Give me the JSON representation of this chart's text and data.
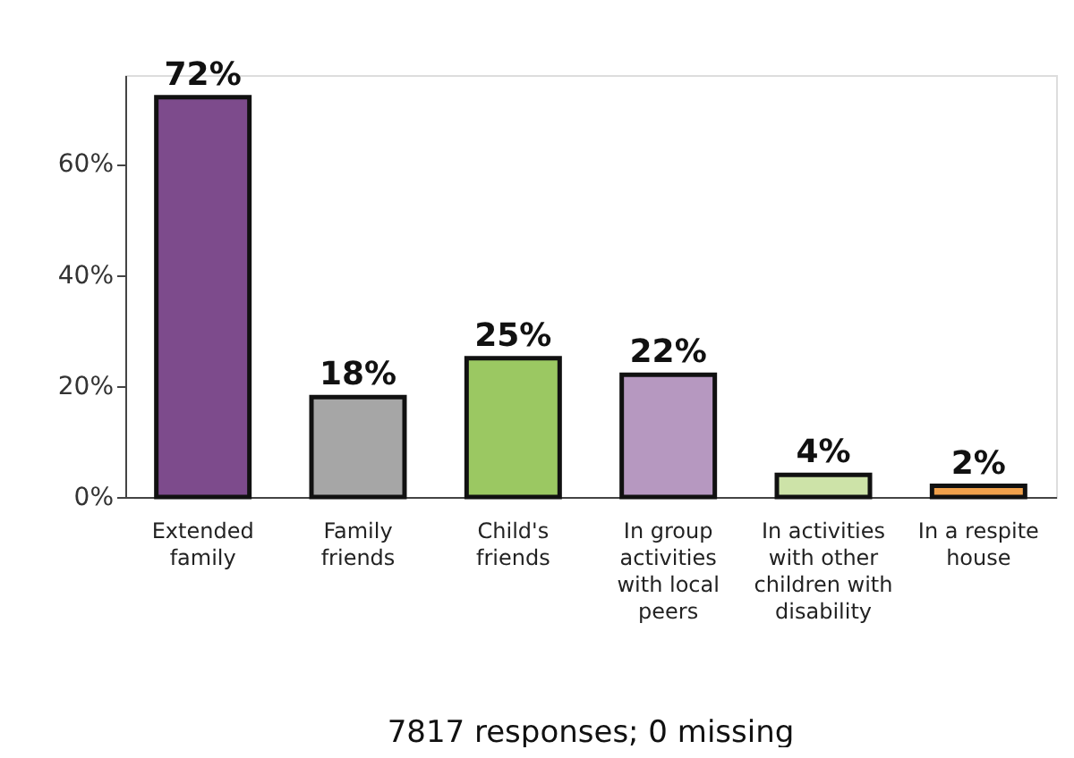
{
  "chart_data": {
    "type": "bar",
    "xlabel": "7817 responses; 0 missing",
    "categories": [
      "Extended family",
      "Family friends",
      "Child's friends",
      "In group activities with local peers",
      "In activities with other children with disability",
      "In a respite house"
    ],
    "values": [
      72,
      18,
      25,
      22,
      4,
      2
    ],
    "colors": [
      "#7d4b8c",
      "#a6a6a6",
      "#9bc862",
      "#b698c0",
      "#cde3a8",
      "#f0a04b"
    ],
    "value_labels": [
      "72%",
      "18%",
      "25%",
      "22%",
      "4%",
      "2%"
    ],
    "ylim": [
      0,
      76
    ],
    "yticks": [
      {
        "value": 0,
        "label": "0%"
      },
      {
        "value": 20,
        "label": "20%"
      },
      {
        "value": 40,
        "label": "40%"
      },
      {
        "value": 60,
        "label": "60%"
      }
    ],
    "grid": false
  }
}
